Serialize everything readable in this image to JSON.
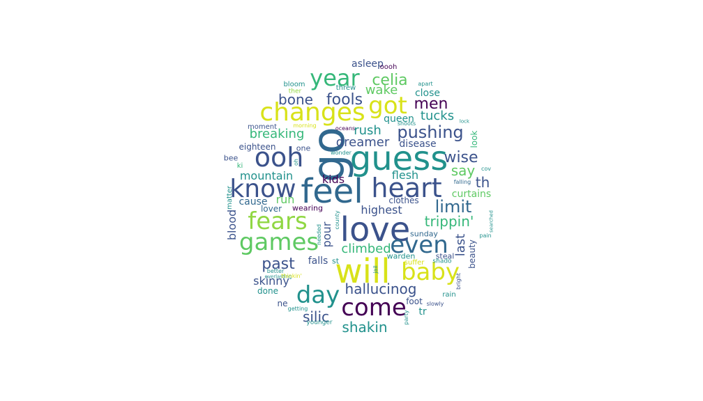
{
  "palette": {
    "dark_purple": "#440154",
    "indigo": "#3b528b",
    "slate_blue": "#31688e",
    "teal": "#21918c",
    "green_teal": "#35b779",
    "green": "#5ec962",
    "lime": "#90d743",
    "yellow": "#d8e219"
  },
  "words": [
    {
      "text": "go",
      "color": "slate_blue"
    },
    {
      "text": "guess",
      "color": "teal"
    },
    {
      "text": "feel",
      "color": "slate_blue"
    },
    {
      "text": "love",
      "color": "indigo"
    },
    {
      "text": "will",
      "color": "yellow"
    },
    {
      "text": "heart",
      "color": "indigo"
    },
    {
      "text": "know",
      "color": "indigo"
    },
    {
      "text": "changes",
      "color": "yellow"
    },
    {
      "text": "year",
      "color": "green_teal"
    },
    {
      "text": "got",
      "color": "yellow"
    },
    {
      "text": "ooh",
      "color": "indigo"
    },
    {
      "text": "fears",
      "color": "lime"
    },
    {
      "text": "games",
      "color": "green"
    },
    {
      "text": "even",
      "color": "slate_blue"
    },
    {
      "text": "baby",
      "color": "yellow"
    },
    {
      "text": "day",
      "color": "teal"
    },
    {
      "text": "come",
      "color": "dark_purple"
    },
    {
      "text": "pushing",
      "color": "indigo"
    },
    {
      "text": "celia",
      "color": "green"
    },
    {
      "text": "fools",
      "color": "indigo"
    },
    {
      "text": "men",
      "color": "dark_purple"
    },
    {
      "text": "wake",
      "color": "green"
    },
    {
      "text": "bone",
      "color": "indigo"
    },
    {
      "text": "close",
      "color": "teal"
    },
    {
      "text": "tucks",
      "color": "teal"
    },
    {
      "text": "queen",
      "color": "teal"
    },
    {
      "text": "breaking",
      "color": "green_teal"
    },
    {
      "text": "rush",
      "color": "teal"
    },
    {
      "text": "dreamer",
      "color": "indigo"
    },
    {
      "text": "disease",
      "color": "indigo"
    },
    {
      "text": "wise",
      "color": "indigo"
    },
    {
      "text": "say",
      "color": "green"
    },
    {
      "text": "th",
      "color": "indigo"
    },
    {
      "text": "mountain",
      "color": "teal"
    },
    {
      "text": "kids",
      "color": "dark_purple"
    },
    {
      "text": "flesh",
      "color": "teal"
    },
    {
      "text": "limit",
      "color": "slate_blue"
    },
    {
      "text": "curtains",
      "color": "green"
    },
    {
      "text": "trippin'",
      "color": "green_teal"
    },
    {
      "text": "highest",
      "color": "indigo"
    },
    {
      "text": "cause",
      "color": "slate_blue"
    },
    {
      "text": "run",
      "color": "green"
    },
    {
      "text": "clothes",
      "color": "indigo"
    },
    {
      "text": "pour",
      "color": "indigo"
    },
    {
      "text": "lover",
      "color": "slate_blue"
    },
    {
      "text": "wearing",
      "color": "dark_purple"
    },
    {
      "text": "past",
      "color": "indigo"
    },
    {
      "text": "climbed",
      "color": "green_teal"
    },
    {
      "text": "last",
      "color": "indigo"
    },
    {
      "text": "beauty",
      "color": "indigo"
    },
    {
      "text": "hallucinog",
      "color": "indigo"
    },
    {
      "text": "skinny",
      "color": "indigo"
    },
    {
      "text": "done",
      "color": "teal"
    },
    {
      "text": "falls",
      "color": "indigo"
    },
    {
      "text": "st",
      "color": "teal"
    },
    {
      "text": "sunday",
      "color": "slate_blue"
    },
    {
      "text": "warden",
      "color": "teal"
    },
    {
      "text": "steal",
      "color": "indigo"
    },
    {
      "text": "shado",
      "color": "teal"
    },
    {
      "text": "suffer",
      "color": "yellow"
    },
    {
      "text": "silic",
      "color": "indigo"
    },
    {
      "text": "ne",
      "color": "indigo"
    },
    {
      "text": "foot",
      "color": "indigo"
    },
    {
      "text": "tr",
      "color": "teal"
    },
    {
      "text": "shakin",
      "color": "teal"
    },
    {
      "text": "rain",
      "color": "teal"
    },
    {
      "text": "slowly",
      "color": "indigo"
    },
    {
      "text": "getting",
      "color": "teal"
    },
    {
      "text": "younger",
      "color": "teal"
    },
    {
      "text": "better",
      "color": "teal"
    },
    {
      "text": "everlasting",
      "color": "teal"
    },
    {
      "text": "thinkin'",
      "color": "yellow"
    },
    {
      "text": "asleep",
      "color": "indigo"
    },
    {
      "text": "oooh",
      "color": "dark_purple"
    },
    {
      "text": "bloom",
      "color": "teal"
    },
    {
      "text": "threw",
      "color": "teal"
    },
    {
      "text": "apart",
      "color": "teal"
    },
    {
      "text": "ther",
      "color": "lime"
    },
    {
      "text": "moment",
      "color": "indigo"
    },
    {
      "text": "morning",
      "color": "yellow"
    },
    {
      "text": "oceans",
      "color": "dark_purple"
    },
    {
      "text": "shoots",
      "color": "teal"
    },
    {
      "text": "lock",
      "color": "teal"
    },
    {
      "text": "eighteen",
      "color": "indigo"
    },
    {
      "text": "one",
      "color": "indigo"
    },
    {
      "text": "wonder",
      "color": "teal"
    },
    {
      "text": "bee",
      "color": "indigo"
    },
    {
      "text": "ki",
      "color": "green_teal"
    },
    {
      "text": "oh",
      "color": "teal"
    },
    {
      "text": "cov",
      "color": "teal"
    },
    {
      "text": "falling",
      "color": "slate_blue"
    },
    {
      "text": "blood",
      "color": "indigo"
    },
    {
      "text": "matter",
      "color": "teal"
    },
    {
      "text": "needed",
      "color": "teal"
    },
    {
      "text": "county",
      "color": "teal"
    },
    {
      "text": "look",
      "color": "green_teal"
    },
    {
      "text": "searched",
      "color": "teal"
    },
    {
      "text": "pain",
      "color": "teal"
    },
    {
      "text": "jail",
      "color": "teal"
    },
    {
      "text": "party",
      "color": "teal"
    },
    {
      "text": "bright",
      "color": "indigo"
    }
  ]
}
